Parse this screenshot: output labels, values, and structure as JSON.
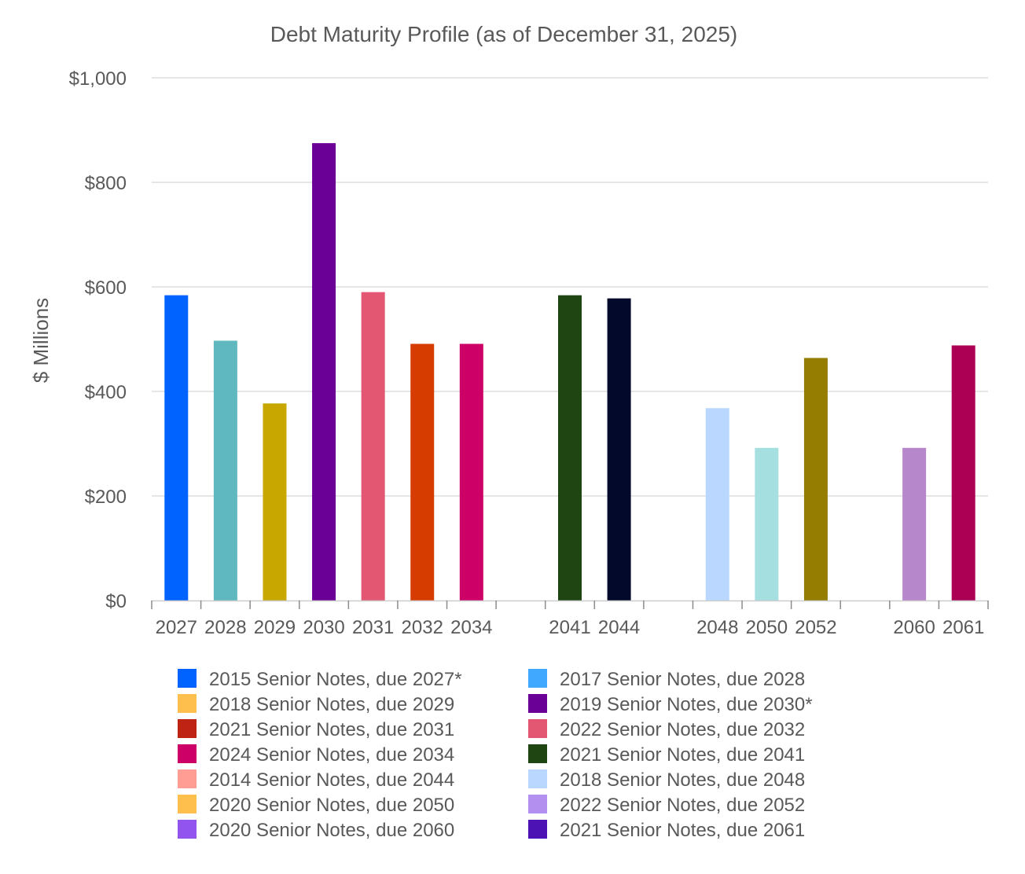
{
  "chart_data": {
    "type": "bar",
    "title": "Debt Maturity Profile (as of December 31, 2025)",
    "xlabel": "",
    "ylabel": "$ Millions",
    "ylim": [
      0,
      1000
    ],
    "y_ticks": [
      {
        "value": 0,
        "label": "$0"
      },
      {
        "value": 200,
        "label": "$200"
      },
      {
        "value": 400,
        "label": "$400"
      },
      {
        "value": 600,
        "label": "$600"
      },
      {
        "value": 800,
        "label": "$800"
      },
      {
        "value": 1000,
        "label": "$1,000"
      }
    ],
    "grid": true,
    "legend_position": "bottom",
    "categories": [
      "2027",
      "2028",
      "2029",
      "2030",
      "2031",
      "2032",
      "2034",
      "",
      "2041",
      "2044",
      "",
      "2048",
      "2050",
      "2052",
      "",
      "2060",
      "2061"
    ],
    "bars": [
      {
        "category": "2027",
        "value": 584,
        "color": "#0062ff"
      },
      {
        "category": "2028",
        "value": 497,
        "color": "#5fb8bf"
      },
      {
        "category": "2029",
        "value": 377,
        "color": "#c8a800"
      },
      {
        "category": "2030",
        "value": 875,
        "color": "#6a0096"
      },
      {
        "category": "2031",
        "value": 590,
        "color": "#e35773"
      },
      {
        "category": "2032",
        "value": 491,
        "color": "#d63c00"
      },
      {
        "category": "2034",
        "value": 491,
        "color": "#cc0066"
      },
      {
        "category": "2041",
        "value": 584,
        "color": "#1f4512"
      },
      {
        "category": "2044",
        "value": 578,
        "color": "#02092a"
      },
      {
        "category": "2048",
        "value": 368,
        "color": "#bad8ff"
      },
      {
        "category": "2050",
        "value": 292,
        "color": "#a6dfe0"
      },
      {
        "category": "2052",
        "value": 464,
        "color": "#947d00"
      },
      {
        "category": "2060",
        "value": 292,
        "color": "#b787cc"
      },
      {
        "category": "2061",
        "value": 488,
        "color": "#ac0055"
      }
    ],
    "legend": [
      {
        "label": "2015 Senior Notes, due 2027*",
        "color": "#0062ff"
      },
      {
        "label": "2017 Senior Notes, due 2028",
        "color": "#40a9ff"
      },
      {
        "label": "2018 Senior Notes, due 2029",
        "color": "#ffbf4d"
      },
      {
        "label": "2019 Senior Notes, due 2030*",
        "color": "#6a0096"
      },
      {
        "label": "2021 Senior Notes, due 2031",
        "color": "#bf2314"
      },
      {
        "label": "2022 Senior Notes, due 2032",
        "color": "#e35773"
      },
      {
        "label": "2024 Senior Notes, due 2034",
        "color": "#cc0066"
      },
      {
        "label": "2021 Senior Notes, due 2041",
        "color": "#1f4512"
      },
      {
        "label": "2014 Senior Notes, due 2044",
        "color": "#ff9d94"
      },
      {
        "label": "2018 Senior Notes, due 2048",
        "color": "#bad8ff"
      },
      {
        "label": "2020 Senior Notes, due 2050",
        "color": "#ffbf4d"
      },
      {
        "label": "2022 Senior Notes, due 2052",
        "color": "#b38ff0"
      },
      {
        "label": "2020 Senior Notes, due 2060",
        "color": "#9154ee"
      },
      {
        "label": "2021 Senior Notes, due 2061",
        "color": "#4d12b3"
      }
    ]
  }
}
